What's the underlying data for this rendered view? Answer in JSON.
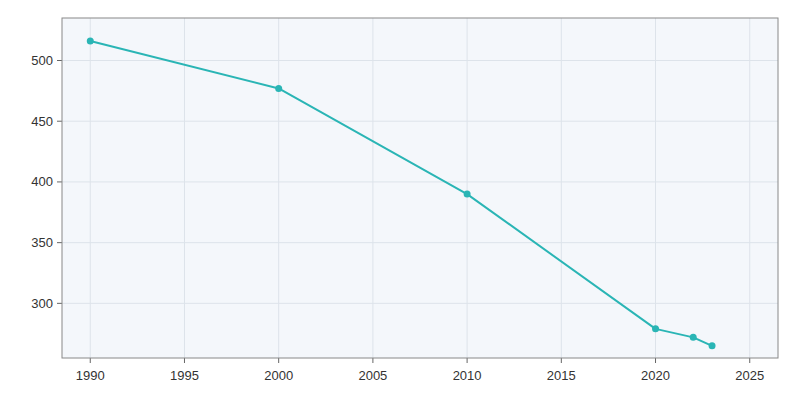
{
  "chart_data": {
    "type": "line",
    "x": [
      1990,
      2000,
      2010,
      2020,
      2022,
      2023
    ],
    "values": [
      516,
      477,
      390,
      279,
      272,
      265
    ],
    "color": "#2ab5b5",
    "marker": "circle",
    "xlim": [
      1988.5,
      2026.5
    ],
    "ylim": [
      255,
      535
    ],
    "xticks": [
      1990,
      1995,
      2000,
      2005,
      2010,
      2015,
      2020,
      2025
    ],
    "yticks": [
      300,
      350,
      400,
      450,
      500
    ],
    "grid": true
  }
}
